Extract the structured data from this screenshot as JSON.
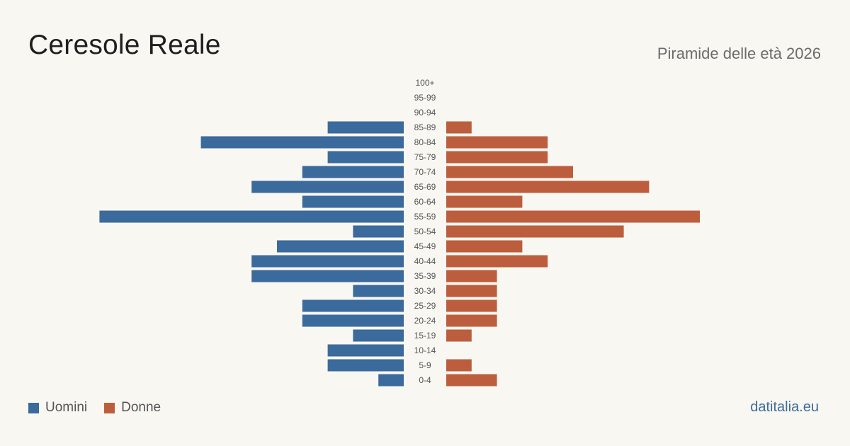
{
  "header": {
    "title": "Ceresole Reale",
    "subtitle": "Piramide delle età 2026"
  },
  "legend": {
    "men_label": "Uomini",
    "women_label": "Donne"
  },
  "footer": {
    "source": "datitalia.eu"
  },
  "colors": {
    "men": "#3b6a9c",
    "women": "#bc5e3d",
    "background": "#f9f7f2",
    "age_label": "#555555"
  },
  "chart_data": {
    "type": "bar",
    "orientation": "horizontal-pyramid",
    "title": "Ceresole Reale",
    "subtitle": "Piramide delle età 2026",
    "categories": [
      "100+",
      "95-99",
      "90-94",
      "85-89",
      "80-84",
      "75-79",
      "70-74",
      "65-69",
      "60-64",
      "55-59",
      "50-54",
      "45-49",
      "40-44",
      "35-39",
      "30-34",
      "25-29",
      "20-24",
      "15-19",
      "10-14",
      "5-9",
      "0-4"
    ],
    "series": [
      {
        "name": "Uomini",
        "values": [
          0,
          0,
          0,
          3,
          8,
          3,
          4,
          6,
          4,
          12,
          2,
          5,
          6,
          6,
          2,
          4,
          4,
          2,
          3,
          3,
          1
        ]
      },
      {
        "name": "Donne",
        "values": [
          0,
          0,
          0,
          1,
          4,
          4,
          5,
          8,
          3,
          10,
          7,
          3,
          4,
          2,
          2,
          2,
          2,
          1,
          0,
          1,
          2
        ]
      }
    ],
    "legend_position": "bottom-left",
    "grid": false
  }
}
